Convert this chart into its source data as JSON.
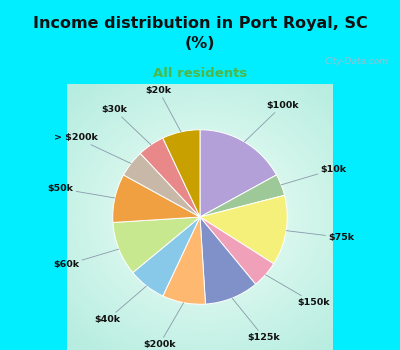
{
  "title": "Income distribution in Port Royal, SC\n(%)",
  "subtitle": "All residents",
  "title_color": "#111111",
  "subtitle_color": "#4db848",
  "bg_top": "#00eeff",
  "labels": [
    "$100k",
    "$10k",
    "$75k",
    "$150k",
    "$125k",
    "$200k",
    "$40k",
    "$60k",
    "$50k",
    "> $200k",
    "$30k",
    "$20k"
  ],
  "values": [
    17,
    4,
    13,
    5,
    10,
    8,
    7,
    10,
    9,
    5,
    5,
    7
  ],
  "colors": [
    "#b3a0d8",
    "#9dc898",
    "#f5f07a",
    "#f0a0b8",
    "#8090c8",
    "#ffb870",
    "#88c8e8",
    "#c8e890",
    "#f0a040",
    "#c8b8a8",
    "#e88888",
    "#c8a000"
  ],
  "watermark": "City-Data.com"
}
